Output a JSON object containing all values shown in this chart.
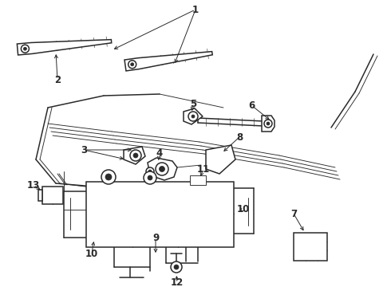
{
  "bg_color": "#ffffff",
  "line_color": "#2a2a2a",
  "fig_width": 4.9,
  "fig_height": 3.6,
  "dpi": 100,
  "xlim": [
    0,
    490
  ],
  "ylim": [
    0,
    360
  ],
  "label_fs": 8.5,
  "lw_main": 1.1,
  "lw_thin": 0.65
}
